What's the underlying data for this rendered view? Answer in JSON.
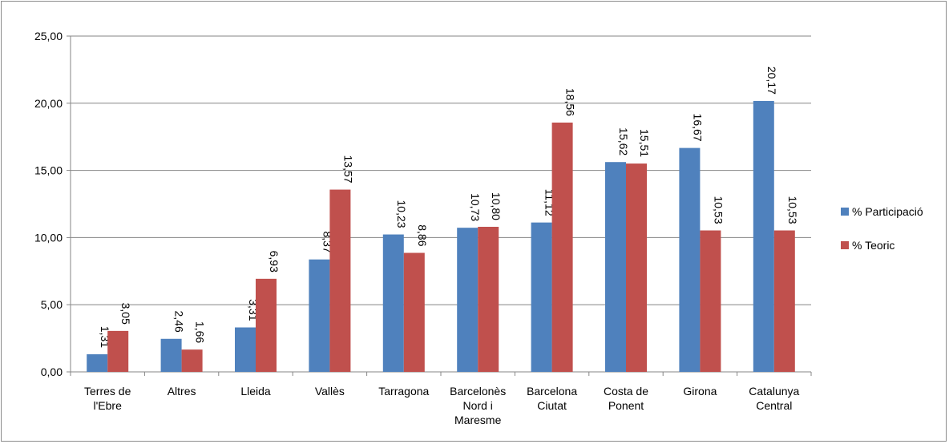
{
  "chart_data": {
    "type": "bar",
    "categories": [
      [
        "Terres de",
        "l'Ebre"
      ],
      [
        "Altres"
      ],
      [
        "Lleida"
      ],
      [
        "Vallès"
      ],
      [
        "Tarragona"
      ],
      [
        "Barcelonès",
        "Nord i",
        "Maresme"
      ],
      [
        "Barcelona",
        "Ciutat"
      ],
      [
        "Costa de",
        "Ponent"
      ],
      [
        "Girona"
      ],
      [
        "Catalunya",
        "Central"
      ]
    ],
    "series": [
      {
        "name": "% Participació",
        "color": "#4f81bd",
        "values": [
          1.31,
          2.46,
          3.31,
          8.37,
          10.23,
          10.73,
          11.12,
          15.62,
          16.67,
          20.17
        ],
        "labels": [
          "1,31",
          "2,46",
          "3,31",
          "8,37",
          "10,23",
          "10,73",
          "11,12",
          "15,62",
          "16,67",
          "20,17"
        ]
      },
      {
        "name": "% Teoric",
        "color": "#c0504d",
        "values": [
          3.05,
          1.66,
          6.93,
          13.57,
          8.86,
          10.8,
          18.56,
          15.51,
          10.53,
          10.53
        ],
        "labels": [
          "3,05",
          "1,66",
          "6,93",
          "13,57",
          "8,86",
          "10,80",
          "18,56",
          "15,51",
          "10,53",
          "10,53"
        ]
      }
    ],
    "yticks": [
      "0,00",
      "5,00",
      "10,00",
      "15,00",
      "20,00",
      "25,00"
    ],
    "ylim": [
      0,
      25
    ],
    "grid": true,
    "legend_position": "right",
    "title": "",
    "xlabel": "",
    "ylabel": ""
  }
}
